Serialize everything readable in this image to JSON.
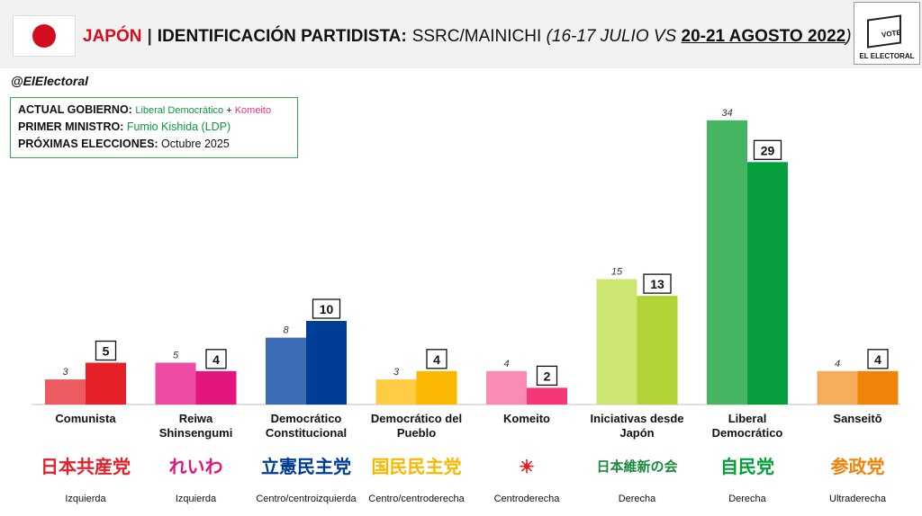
{
  "header": {
    "country": "JAPÓN",
    "separator": "|",
    "title": "IDENTIFICACIÓN PARTIDISTA:",
    "source": "SSRC/MAINICHI",
    "date_open": "(",
    "date_prev": "16-17 JULIO VS ",
    "date_curr": "20-21 AGOSTO 2022",
    "date_close": ")",
    "logo_vote": "VOTE",
    "logo_brand": "EL ELECTORAL",
    "flag_icon": "japan-flag-icon",
    "colors": {
      "country": "#d40d1e",
      "flag_disc": "#d40d1e"
    }
  },
  "handle": "@ElElectoral",
  "info": {
    "gov_key": "ACTUAL GOBIERNO: ",
    "gov_ldp": "Liberal Democrático",
    "gov_plus": " + ",
    "gov_komeito": "Komeito",
    "pm_key": "PRIMER MINISTRO: ",
    "pm_value": "Fumio Kishida (LDP)",
    "elec_key": "PRÓXIMAS ELECCIONES: ",
    "elec_value": "Octubre 2025"
  },
  "chart_data": {
    "type": "bar",
    "series": [
      {
        "name": "16-17 JULIO",
        "values": [
          3,
          5,
          8,
          3,
          4,
          15,
          34,
          4
        ]
      },
      {
        "name": "20-21 AGOSTO 2022",
        "values": [
          5,
          4,
          10,
          4,
          2,
          13,
          29,
          4
        ]
      }
    ],
    "categories": [
      "Comunista",
      "Reiwa Shinsengumi",
      "Democrático Constitucional",
      "Democrático del Pueblo",
      "Komeito",
      "Iniciativas desde Japón",
      "Liberal Democrático",
      "Sanseitō"
    ],
    "ylim": [
      0,
      34
    ],
    "grid": false,
    "legend": "none",
    "colors_prev": [
      "#eb5b60",
      "#ee4ba5",
      "#3c6db5",
      "#ffcc44",
      "#f98bb4",
      "#cde672",
      "#45b561",
      "#f5ad5c"
    ],
    "colors_curr": [
      "#e52029",
      "#e2157e",
      "#003d96",
      "#fbb800",
      "#f5377a",
      "#b0d336",
      "#05a03c",
      "#f0840a"
    ]
  },
  "parties": [
    {
      "name": "Comunista",
      "logo_text": "日本共産党",
      "logo_color": "#e52029",
      "ideology": "Izquierda"
    },
    {
      "name": "Reiwa\nShinsengumi",
      "logo_text": "れいわ",
      "logo_color": "#e2157e",
      "ideology": "Izquierda"
    },
    {
      "name": "Democrático\nConstitucional",
      "logo_text": "立憲民主党",
      "logo_color": "#003d96",
      "ideology": "Centro/centroizquierda"
    },
    {
      "name": "Democrático del\nPueblo",
      "logo_text": "国民民主党",
      "logo_color": "#fbb800",
      "ideology": "Centro/centroderecha"
    },
    {
      "name": "Komeito",
      "logo_text": "☀",
      "logo_color": "#e52029",
      "ideology": "Centroderecha"
    },
    {
      "name": "Iniciativas desde\nJapón",
      "logo_text": "日本維新の会",
      "logo_color": "#1a8a3b",
      "ideology": "Derecha"
    },
    {
      "name": "Liberal\nDemocrático",
      "logo_text": "自民党",
      "logo_color": "#05a03c",
      "ideology": "Derecha"
    },
    {
      "name": "Sanseitō",
      "logo_text": "参政党",
      "logo_color": "#f0840a",
      "ideology": "Ultraderecha"
    }
  ]
}
